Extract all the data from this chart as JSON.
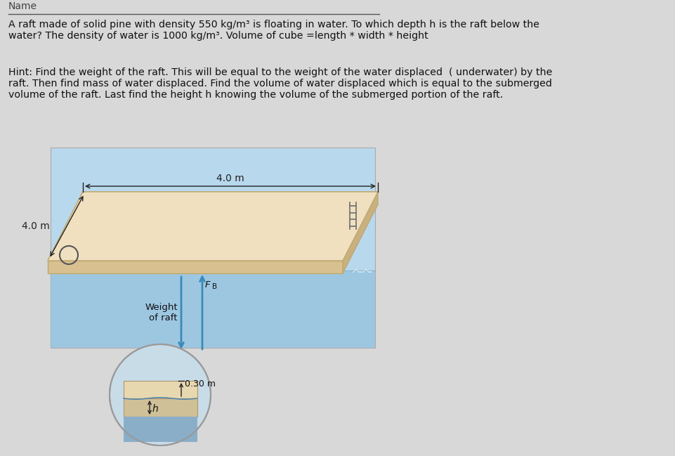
{
  "bg_color": "#d8d8d8",
  "box_bg": "#b8d8ed",
  "raft_top": "#f0e0c0",
  "raft_side_front": "#d8c090",
  "raft_side_right": "#c8b080",
  "water_deep": "#8bbcda",
  "water_surface": "#a8ccde",
  "circle_bg": "#c8dce8",
  "circle_edge": "#999999",
  "wood_above": "#e8d8b0",
  "wood_below": "#d0c098",
  "submerged_water": "#8aaec8",
  "arrow_blue": "#3a8aba",
  "dim_color": "#222222",
  "text_color": "#111111",
  "problem_text": "A raft made of solid pine with density 550 kg/m³ is floating in water. To which depth h is the raft below the\nwater? The density of water is 1000 kg/m³. Volume of cube =length * width * height",
  "hint_text": "Hint: Find the weight of the raft. This will be equal to the weight of the water displaced  ( underwater) by the\nraft. Then find mass of water displaced. Find the volume of water displaced which is equal to the submerged\nvolume of the raft. Last find the height h knowing the volume of the submerged portion of the raft.",
  "dim_40m": "4.0 m",
  "weight_label": "Weight\nof raft",
  "fb_label": "F",
  "fb_sub": "B",
  "depth_label": "0.30 m",
  "h_label": "h"
}
